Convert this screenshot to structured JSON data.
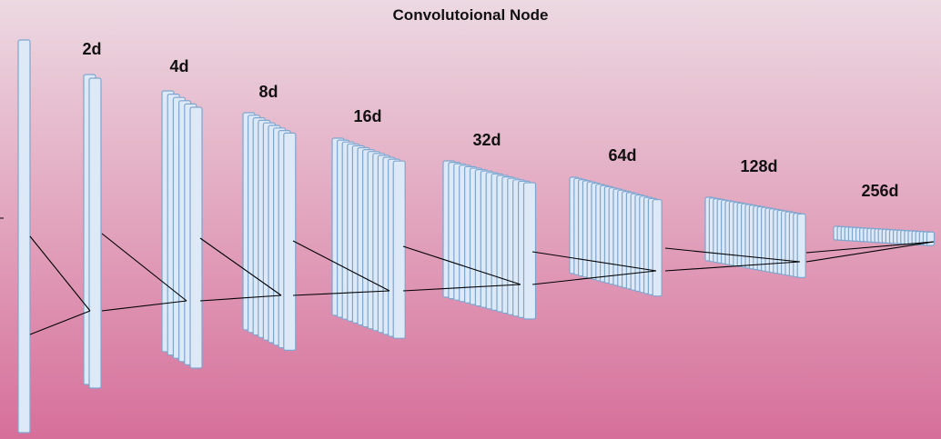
{
  "diagram": {
    "title": "Convolutoional Node",
    "colors": {
      "slab_fill": "#dde9f7",
      "slab_stroke": "#7fa6cf",
      "line": "#000000"
    },
    "stages": [
      {
        "label": "",
        "slabs": 1
      },
      {
        "label": "2d",
        "slabs": 2
      },
      {
        "label": "4d",
        "slabs": 4
      },
      {
        "label": "8d",
        "slabs": 8
      },
      {
        "label": "16d",
        "slabs": 16
      },
      {
        "label": "32d",
        "slabs": 32
      },
      {
        "label": "64d",
        "slabs": 64
      },
      {
        "label": "128d",
        "slabs": 128
      },
      {
        "label": "256d",
        "slabs": 256
      }
    ]
  }
}
